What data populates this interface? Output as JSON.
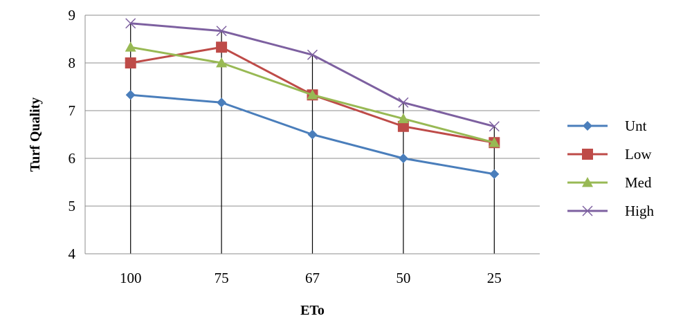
{
  "chart_data": {
    "type": "line",
    "title": "",
    "xlabel": "ETo",
    "ylabel": "Turf Quality",
    "categories": [
      "100",
      "75",
      "67",
      "50",
      "25"
    ],
    "ylim": [
      4,
      9
    ],
    "yticks": [
      4,
      5,
      6,
      7,
      8,
      9
    ],
    "grid": "horizontal",
    "legend": "right",
    "series": [
      {
        "name": "Unt",
        "values": [
          7.33,
          7.17,
          6.5,
          6.0,
          5.67
        ],
        "color": "#4a7ebb",
        "marker": "diamond"
      },
      {
        "name": "Low",
        "values": [
          8.0,
          8.33,
          7.33,
          6.67,
          6.33
        ],
        "color": "#be4b48",
        "marker": "square"
      },
      {
        "name": "Med",
        "values": [
          8.33,
          8.0,
          7.33,
          6.83,
          6.33
        ],
        "color": "#98b954",
        "marker": "triangle"
      },
      {
        "name": "High",
        "values": [
          8.83,
          8.67,
          8.17,
          7.17,
          6.67
        ],
        "color": "#7d60a0",
        "marker": "x"
      }
    ]
  }
}
